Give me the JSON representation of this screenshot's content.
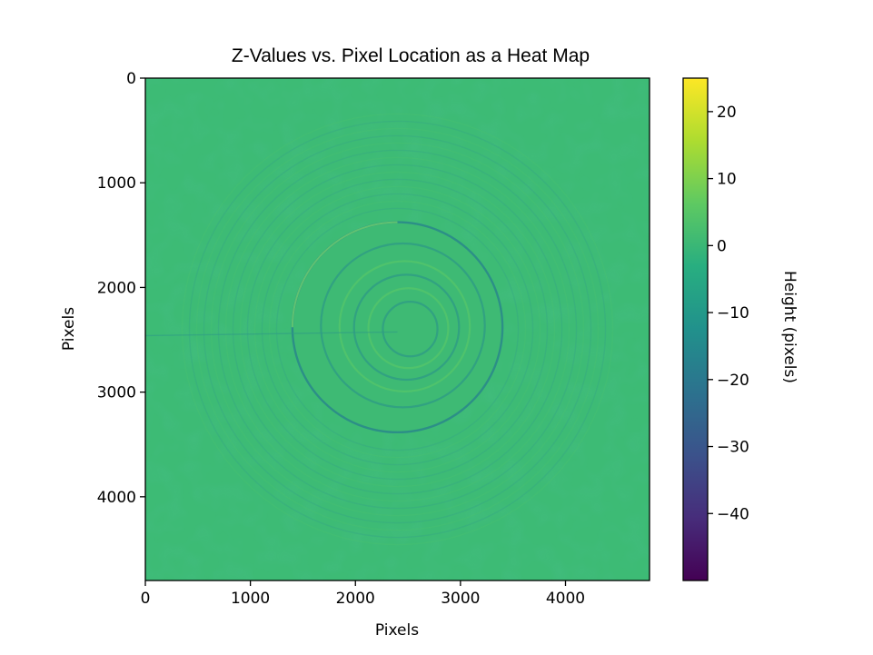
{
  "chart_data": {
    "type": "heatmap",
    "title": "Z-Values vs. Pixel Location as a Heat Map",
    "xlabel": "Pixels",
    "ylabel": "Pixels",
    "xlim": [
      0,
      4800
    ],
    "ylim": [
      4800,
      0
    ],
    "y_axis_inverted": true,
    "x_ticks": [
      0,
      1000,
      2000,
      3000,
      4000
    ],
    "y_ticks": [
      0,
      1000,
      2000,
      3000,
      4000
    ],
    "colormap": "viridis",
    "colorbar": {
      "label": "Height (pixels)",
      "range": [
        -50,
        25
      ],
      "ticks": [
        20,
        10,
        0,
        -10,
        -20,
        -30,
        -40
      ]
    },
    "background_value": 2,
    "features": [
      {
        "shape": "ring",
        "center_x": 2400,
        "center_y": 2400,
        "radius": 2050,
        "description": "outer faint ring pattern"
      },
      {
        "shape": "disc",
        "center_x": 2400,
        "center_y": 2380,
        "radius": 1000,
        "description": "central raised disc with concentric ripples"
      },
      {
        "shape": "line",
        "x_from": 0,
        "x_to": 2400,
        "y": 2460,
        "description": "faint horizontal streak"
      }
    ],
    "grid": false,
    "legend": "colorbar-right"
  }
}
